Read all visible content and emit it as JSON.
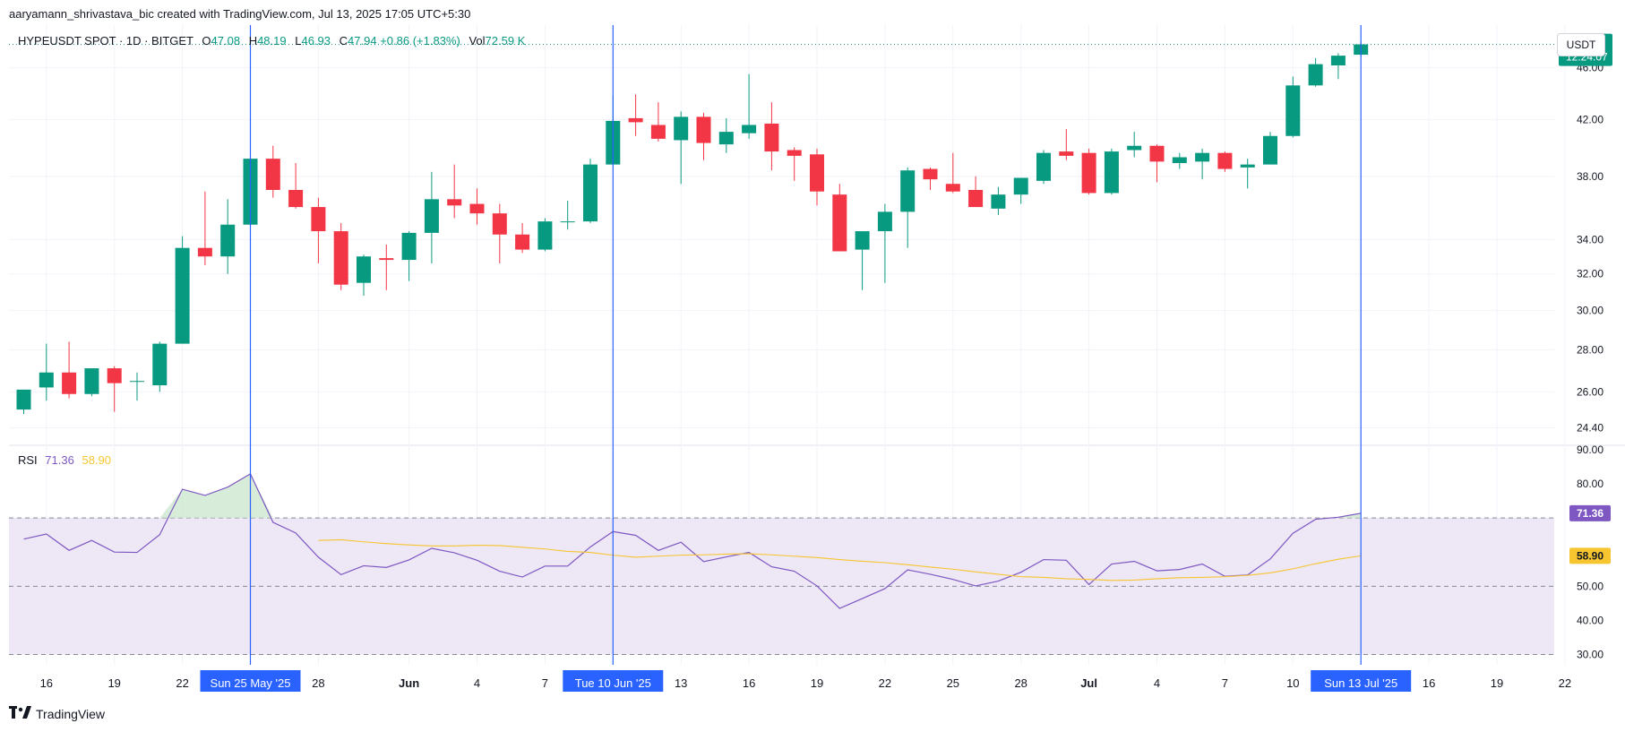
{
  "credit": "aaryamann_shrivastava_bic created with TradingView.com, Jul 13, 2025 17:05 UTC+5:30",
  "legend": {
    "symbol": "HYPEUSDT SPOT · 1D · BITGET",
    "open_key": "O",
    "open": "47.08",
    "high_key": "H",
    "high": "48.19",
    "low_key": "L",
    "low": "46.93",
    "close_key": "C",
    "close": "47.94",
    "change": "+0.86 (+1.83%)",
    "vol_key": "Vol",
    "vol": "72.59 K"
  },
  "currency": "USDT",
  "price_badge": {
    "price": "47.94",
    "countdown": "12:24:07"
  },
  "rsi_legend": {
    "name": "RSI",
    "rsi": "71.36",
    "ma": "58.90"
  },
  "footer": {
    "brand": "TradingView",
    "logo": "tradingview-logo-icon"
  },
  "colors": {
    "up": "#089981",
    "down": "#f23645",
    "rsi": "#7e57c2",
    "rsi_ma": "#f7c52f",
    "crosshair": "#2962ff",
    "badge_bg": "#2962ff",
    "rsi_band": "#ede7f6",
    "overbought_fill": "#c8e6c9"
  },
  "chart_data": [
    {
      "type": "candlestick",
      "symbol": "HYPEUSDT",
      "yticks": [
        "24.40",
        "26.00",
        "28.00",
        "30.00",
        "32.00",
        "34.00",
        "38.00",
        "42.00",
        "46.00"
      ],
      "ylim": [
        23.7,
        49.6
      ],
      "log_scale": true,
      "x_labels": [
        {
          "i": 1,
          "label": "16"
        },
        {
          "i": 4,
          "label": "19"
        },
        {
          "i": 7,
          "label": "22"
        },
        {
          "i": 13,
          "label": "28"
        },
        {
          "i": 17,
          "label": "Jun"
        },
        {
          "i": 20,
          "label": "4"
        },
        {
          "i": 23,
          "label": "7"
        },
        {
          "i": 29,
          "label": "13"
        },
        {
          "i": 32,
          "label": "16"
        },
        {
          "i": 35,
          "label": "19"
        },
        {
          "i": 38,
          "label": "22"
        },
        {
          "i": 41,
          "label": "25"
        },
        {
          "i": 44,
          "label": "28"
        },
        {
          "i": 47,
          "label": "Jul"
        },
        {
          "i": 50,
          "label": "4"
        },
        {
          "i": 53,
          "label": "7"
        },
        {
          "i": 56,
          "label": "10"
        },
        {
          "i": 62,
          "label": "16"
        },
        {
          "i": 65,
          "label": "19"
        },
        {
          "i": 68,
          "label": "22"
        }
      ],
      "highlight_labels": [
        {
          "i": 10,
          "label": "Sun 25 May '25"
        },
        {
          "i": 26,
          "label": "Tue 10 Jun '25"
        },
        {
          "i": 59,
          "label": "Sun 13 Jul '25"
        }
      ],
      "candles": [
        [
          25.2,
          26.1,
          25.0,
          26.1
        ],
        [
          26.2,
          28.3,
          25.6,
          26.9
        ],
        [
          26.9,
          28.4,
          25.7,
          25.9
        ],
        [
          25.9,
          27.1,
          25.8,
          27.1
        ],
        [
          27.1,
          27.2,
          25.1,
          26.4
        ],
        [
          26.5,
          26.9,
          25.6,
          26.5
        ],
        [
          26.3,
          28.4,
          26.0,
          28.3
        ],
        [
          28.3,
          34.2,
          28.3,
          33.5
        ],
        [
          33.5,
          37.0,
          32.5,
          33.0
        ],
        [
          33.0,
          36.5,
          32.0,
          34.9
        ],
        [
          34.9,
          39.2,
          32.4,
          39.2
        ],
        [
          39.2,
          40.1,
          36.6,
          37.1
        ],
        [
          37.1,
          38.9,
          35.9,
          36.0
        ],
        [
          36.0,
          36.6,
          32.6,
          34.5
        ],
        [
          34.5,
          35.0,
          31.1,
          31.4
        ],
        [
          31.5,
          33.1,
          30.8,
          33.0
        ],
        [
          32.9,
          33.7,
          31.1,
          32.8
        ],
        [
          32.8,
          34.5,
          31.6,
          34.4
        ],
        [
          34.4,
          38.3,
          32.6,
          36.5
        ],
        [
          36.5,
          38.8,
          35.3,
          36.1
        ],
        [
          36.2,
          37.2,
          34.9,
          35.6
        ],
        [
          35.6,
          36.2,
          32.6,
          34.3
        ],
        [
          34.3,
          35.0,
          33.2,
          33.4
        ],
        [
          33.4,
          35.3,
          33.3,
          35.1
        ],
        [
          35.1,
          36.4,
          34.6,
          35.1
        ],
        [
          35.1,
          39.2,
          35.0,
          38.8
        ],
        [
          38.8,
          43.8,
          38.8,
          41.9
        ],
        [
          42.1,
          43.9,
          40.8,
          41.8
        ],
        [
          41.6,
          43.3,
          40.4,
          40.6
        ],
        [
          40.5,
          42.6,
          37.5,
          42.2
        ],
        [
          42.2,
          42.5,
          39.1,
          40.3
        ],
        [
          40.2,
          42.1,
          39.6,
          41.1
        ],
        [
          41.0,
          45.5,
          40.6,
          41.6
        ],
        [
          41.7,
          43.3,
          38.4,
          39.7
        ],
        [
          39.8,
          40.0,
          37.7,
          39.4
        ],
        [
          39.5,
          39.9,
          36.1,
          37.0
        ],
        [
          36.8,
          37.5,
          33.3,
          33.3
        ],
        [
          33.4,
          34.3,
          31.1,
          34.5
        ],
        [
          34.5,
          36.2,
          31.5,
          35.7
        ],
        [
          35.7,
          38.6,
          33.5,
          38.4
        ],
        [
          38.5,
          38.6,
          37.1,
          37.8
        ],
        [
          37.5,
          39.6,
          36.9,
          37.0
        ],
        [
          37.1,
          38.0,
          36.0,
          36.0
        ],
        [
          35.9,
          37.3,
          35.5,
          36.8
        ],
        [
          36.8,
          37.9,
          36.2,
          37.9
        ],
        [
          37.7,
          39.8,
          37.5,
          39.6
        ],
        [
          39.7,
          41.3,
          39.1,
          39.4
        ],
        [
          39.6,
          39.9,
          36.8,
          36.9
        ],
        [
          36.9,
          39.9,
          36.8,
          39.7
        ],
        [
          39.8,
          41.1,
          39.3,
          40.1
        ],
        [
          40.1,
          40.2,
          37.6,
          39.0
        ],
        [
          38.9,
          39.6,
          38.5,
          39.3
        ],
        [
          39.0,
          39.9,
          37.8,
          39.6
        ],
        [
          39.6,
          39.7,
          38.3,
          38.5
        ],
        [
          38.6,
          39.2,
          37.2,
          38.8
        ],
        [
          38.8,
          41.1,
          38.8,
          40.8
        ],
        [
          40.8,
          45.3,
          40.7,
          44.6
        ],
        [
          44.6,
          46.8,
          44.5,
          46.3
        ],
        [
          46.2,
          47.2,
          45.1,
          47.0
        ],
        [
          47.08,
          48.19,
          46.93,
          47.94
        ]
      ]
    },
    {
      "type": "line",
      "name": "RSI",
      "yticks": [
        "30.00",
        "40.00",
        "50.00",
        "60.00",
        "70.00",
        "80.00",
        "90.00"
      ],
      "ylim": [
        27,
        91
      ],
      "bands": {
        "upper": 70,
        "middle": 50,
        "lower": 30
      },
      "series": [
        {
          "name": "RSI",
          "values": [
            63.8,
            65.3,
            60.5,
            63.4,
            60.0,
            59.9,
            65.1,
            78.4,
            76.6,
            79.0,
            82.9,
            68.7,
            65.6,
            58.5,
            53.4,
            56.0,
            55.5,
            57.7,
            61.1,
            59.8,
            57.6,
            54.4,
            52.7,
            55.9,
            55.9,
            61.5,
            66.0,
            64.9,
            60.5,
            62.9,
            57.2,
            58.6,
            59.9,
            55.7,
            54.4,
            50.1,
            43.5,
            46.4,
            49.3,
            54.8,
            53.5,
            52.0,
            50.1,
            51.5,
            54.1,
            57.8,
            57.6,
            50.5,
            56.5,
            57.3,
            54.5,
            54.9,
            56.5,
            52.9,
            53.3,
            58.0,
            65.5,
            69.6,
            70.2,
            71.36
          ]
        },
        {
          "name": "RSI MA",
          "values": [
            null,
            null,
            null,
            null,
            null,
            null,
            null,
            null,
            null,
            null,
            null,
            null,
            null,
            63.4,
            63.6,
            63.0,
            62.5,
            62.1,
            61.8,
            61.8,
            62.0,
            61.9,
            61.4,
            60.9,
            60.2,
            59.9,
            59.1,
            58.5,
            58.8,
            59.1,
            59.2,
            59.4,
            59.5,
            59.2,
            58.8,
            58.4,
            57.8,
            57.3,
            56.9,
            56.3,
            55.6,
            55.0,
            54.2,
            53.5,
            52.8,
            52.6,
            52.2,
            52.0,
            51.7,
            51.8,
            52.2,
            52.5,
            52.6,
            52.8,
            53.2,
            53.9,
            55.1,
            56.6,
            57.9,
            58.9
          ]
        }
      ]
    }
  ]
}
